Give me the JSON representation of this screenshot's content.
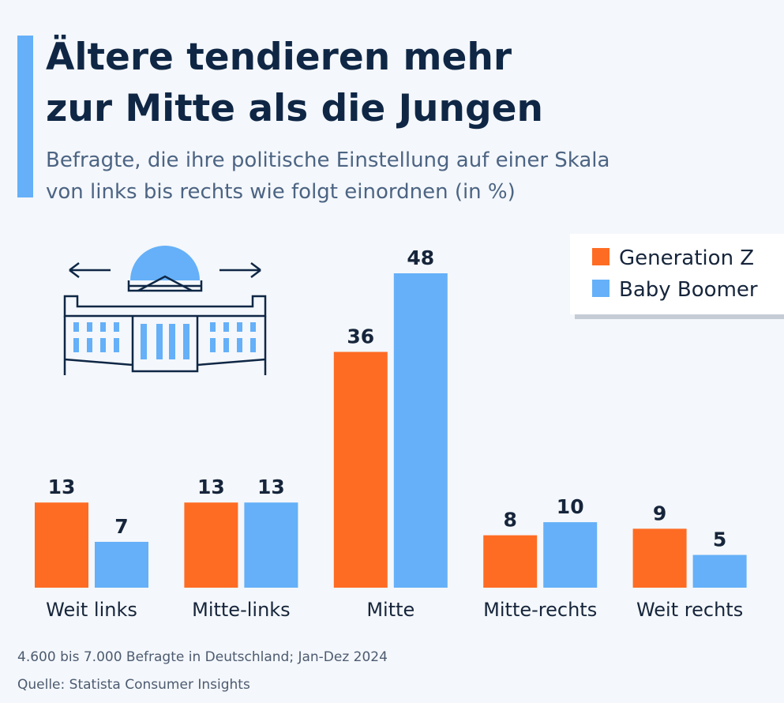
{
  "chart_data": {
    "type": "bar",
    "title": [
      "Ältere tendieren mehr",
      "zur Mitte als die Jungen"
    ],
    "subtitle": [
      "Befragte, die ihre politische Einstellung auf einer Skala",
      "von links bis rechts wie folgt einordnen (in %)"
    ],
    "categories": [
      "Weit links",
      "Mitte-links",
      "Mitte",
      "Mitte-rechts",
      "Weit rechts"
    ],
    "series": [
      {
        "name": "Generation Z",
        "color": "#fe6c23",
        "values": [
          13,
          13,
          36,
          8,
          9
        ]
      },
      {
        "name": "Baby Boomer",
        "color": "#65b0f8",
        "values": [
          7,
          13,
          48,
          10,
          5
        ]
      }
    ],
    "legend": "upper right",
    "notes": [
      "4.600 bis 7.000 Befragte in Deutschland; Jan-Dez 2024",
      "Quelle: Statista Consumer Insights"
    ]
  }
}
